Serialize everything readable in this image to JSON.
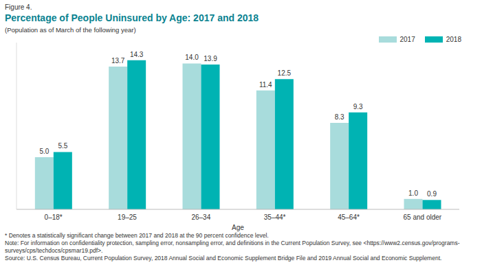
{
  "figure_label": "Figure 4.",
  "chart_data": {
    "type": "bar",
    "title": "Percentage of People Uninsured by Age: 2017 and 2018",
    "subtitle": "(Population as of March of the following year)",
    "x_label": "Age",
    "categories": [
      "0–18*",
      "19–25",
      "26–34",
      "35–44*",
      "45–64*",
      "65 and older"
    ],
    "series": [
      {
        "name": "2017",
        "color": "#a8dcdc",
        "values": [
          5.0,
          13.7,
          14.0,
          11.4,
          8.3,
          1.0
        ],
        "value_labels": [
          "5.0",
          "13.7",
          "14.0",
          "11.4",
          "8.3",
          "1.0"
        ]
      },
      {
        "name": "2018",
        "color": "#00b3b3",
        "values": [
          5.5,
          14.3,
          13.9,
          12.5,
          9.3,
          0.9
        ]
      }
    ],
    "ylim": [
      0,
      16
    ],
    "grid": false,
    "legend": "upper right",
    "data_labels": true,
    "tick_labels": "x"
  },
  "notes": [
    "* Denotes a statistically significant change between 2017 and 2018 at the 90 percent confidence level.",
    "Note: For information on confidentiality protection, sampling error, nonsampling error, and definitions in the Current Population Survey, see <https://www2.census.gov/programs-surveys/cps/techdocs/cpsmar19.pdf>.",
    "Source: U.S. Census Bureau, Current Population Survey, 2018 Annual Social and Economic Supplement Bridge File and 2019 Annual Social and Economic Supplement."
  ]
}
